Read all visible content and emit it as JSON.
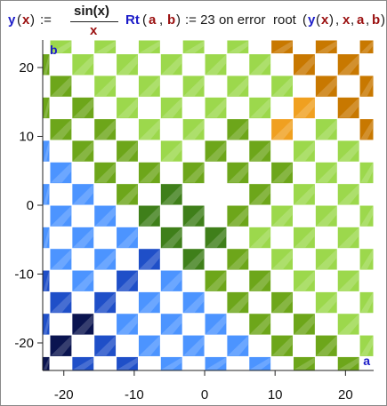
{
  "formula": {
    "y": "y",
    "x": "x",
    "assign": ":=",
    "numerator": "sin(x)",
    "denominator": "x",
    "rt": "Rt",
    "a": "a",
    "b": "b",
    "comma": ",",
    "value": ":= 23 on error",
    "root": "root",
    "colors": {
      "function": "#1c1cc8",
      "variable": "#9a1010"
    }
  },
  "chart_data": {
    "type": "heatmap",
    "xlabel": "a",
    "ylabel": "b",
    "xlim": [
      -23,
      24
    ],
    "ylim": [
      -24,
      24
    ],
    "x_ticks": [
      -20,
      -10,
      0,
      10,
      20
    ],
    "x_tick_labels": [
      "-20",
      "-10",
      "0",
      "10",
      "20"
    ],
    "y_ticks": [
      20,
      10,
      0,
      -10,
      -20
    ],
    "y_tick_labels": [
      "20",
      "10",
      "0",
      "-10",
      "-20"
    ],
    "grid": false,
    "cell_size": 3.14159,
    "pattern": "checkerboard",
    "description_levels": {
      "23": "#ffffff",
      "root_colors": [
        "#0a1450",
        "#1f4fc8",
        "#4c94ff",
        "#3f7f1a",
        "#6da61a",
        "#9cd84c",
        "#f0a020",
        "#c87800"
      ]
    }
  }
}
